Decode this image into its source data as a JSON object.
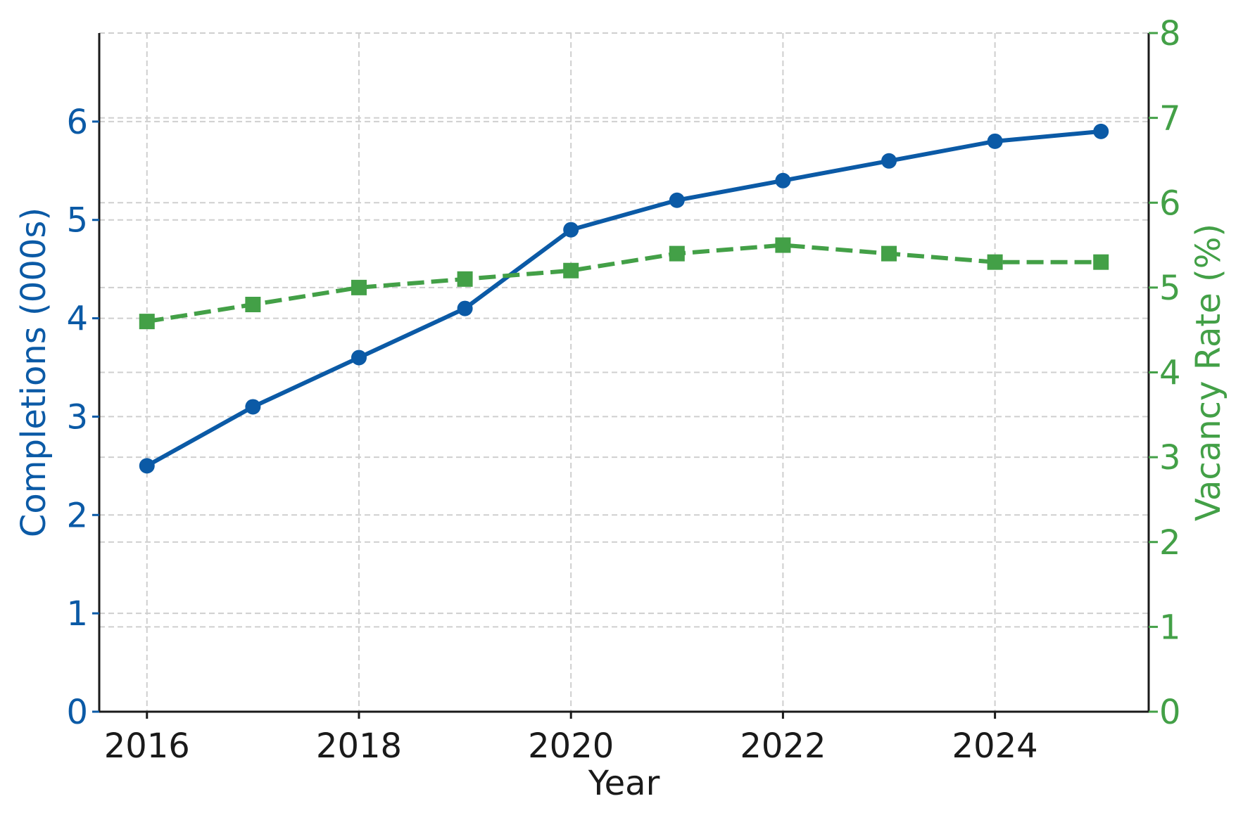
{
  "chart_data": {
    "type": "line",
    "title": "",
    "xlabel": "Year",
    "ylabel": "Completions (000s)",
    "y2label": "Vacancy Rate (%)",
    "x": [
      2016,
      2017,
      2018,
      2019,
      2020,
      2021,
      2022,
      2023,
      2024,
      2025
    ],
    "xticks": [
      2016,
      2018,
      2020,
      2022,
      2024
    ],
    "xlim": [
      2015.55,
      2025.45
    ],
    "ylim": [
      0,
      6.9
    ],
    "yticks": [
      0,
      1,
      2,
      3,
      4,
      5,
      6
    ],
    "y2lim": [
      0,
      8
    ],
    "y2ticks": [
      0,
      1,
      2,
      3,
      4,
      5,
      6,
      7,
      8
    ],
    "grid": true,
    "series": [
      {
        "axis": "left",
        "color": "#0b5aa6",
        "style": "solid",
        "marker": "circle",
        "values": [
          2.5,
          3.1,
          3.6,
          4.1,
          4.9,
          5.2,
          5.4,
          5.6,
          5.8,
          5.9
        ]
      },
      {
        "axis": "right",
        "color": "#43a047",
        "style": "dashed",
        "marker": "square",
        "values": [
          4.6,
          4.8,
          5.0,
          5.1,
          5.2,
          5.4,
          5.5,
          5.4,
          5.3,
          5.3
        ]
      }
    ],
    "colors": {
      "left_axis": "#0b5aa6",
      "right_axis": "#43a047",
      "x_axis": "#1a1a1a",
      "grid": "#cfcfcf"
    }
  }
}
